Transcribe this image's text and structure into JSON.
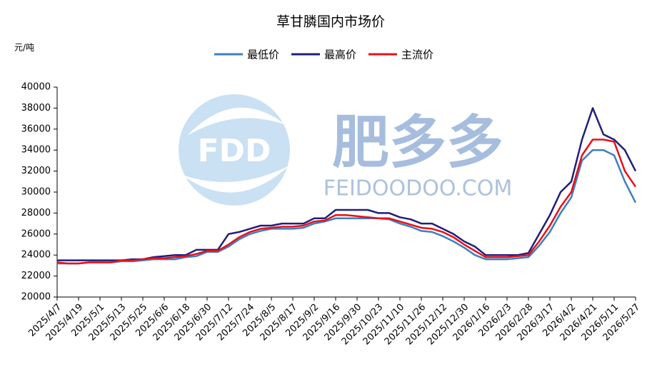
{
  "chart_data": {
    "type": "line",
    "title": "草甘膦国内市场价",
    "y_label": "元/吨",
    "watermark": {
      "logo": "FDD",
      "brand": "肥多多",
      "url": "FEIDOODOO.COM"
    },
    "categories": [
      "2025/4/7",
      null,
      "2025/4/19",
      null,
      "2025/5/1",
      null,
      "2025/5/13",
      null,
      "2025/5/25",
      null,
      "2025/6/6",
      null,
      "2025/6/18",
      null,
      "2025/6/30",
      null,
      "2025/7/12",
      null,
      "2025/7/24",
      null,
      "2025/8/5",
      null,
      "2025/8/17",
      null,
      "2025/9/2",
      null,
      "2025/9/16",
      null,
      "2025/9/30",
      null,
      "2025/10/23",
      null,
      "2025/11/10",
      null,
      "2025/11/26",
      null,
      "2025/12/12",
      null,
      "2025/12/30",
      null,
      "2026/1/16",
      null,
      "2026/2/3",
      null,
      "2026/2/28",
      null,
      "2026/3/17",
      null,
      "2026/4/2",
      null,
      "2026/4/21",
      null,
      "2026/5/11",
      null,
      "2026/5/27"
    ],
    "series": [
      {
        "name": "最低价",
        "color": "#3f7fbf",
        "values": [
          23200,
          23200,
          23200,
          23300,
          23300,
          23300,
          23400,
          23400,
          23500,
          23600,
          23600,
          23600,
          23800,
          23900,
          24300,
          24300,
          24800,
          25500,
          26000,
          26300,
          26500,
          26500,
          26500,
          26600,
          27000,
          27200,
          27500,
          27500,
          27500,
          27500,
          27500,
          27400,
          27000,
          26700,
          26300,
          26200,
          25800,
          25300,
          24700,
          24000,
          23600,
          23600,
          23600,
          23700,
          23800,
          24900,
          26200,
          28000,
          29500,
          33000,
          34000,
          34000,
          33500,
          31000,
          29000
        ]
      },
      {
        "name": "最高价",
        "color": "#1f1f7a",
        "values": [
          23500,
          23500,
          23500,
          23500,
          23500,
          23500,
          23500,
          23600,
          23600,
          23800,
          23900,
          24000,
          24000,
          24500,
          24500,
          24500,
          26000,
          26200,
          26500,
          26800,
          26800,
          27000,
          27000,
          27000,
          27500,
          27500,
          28300,
          28300,
          28300,
          28300,
          28000,
          28000,
          27600,
          27400,
          27000,
          27000,
          26500,
          26000,
          25300,
          24800,
          24000,
          24000,
          24000,
          24000,
          24200,
          26000,
          27800,
          30000,
          31000,
          35000,
          38000,
          35500,
          35000,
          34000,
          32000
        ]
      },
      {
        "name": "主流价",
        "color": "#e8101a",
        "values": [
          23300,
          23200,
          23200,
          23300,
          23300,
          23300,
          23500,
          23500,
          23600,
          23700,
          23700,
          23800,
          23900,
          24100,
          24400,
          24400,
          25000,
          25700,
          26200,
          26500,
          26600,
          26700,
          26700,
          26800,
          27200,
          27300,
          27800,
          27800,
          27700,
          27600,
          27500,
          27500,
          27200,
          26900,
          26600,
          26500,
          26200,
          25700,
          25000,
          24400,
          23800,
          23800,
          23800,
          23900,
          24000,
          25300,
          26800,
          28600,
          30000,
          33500,
          35000,
          35000,
          34800,
          32000,
          30500
        ]
      }
    ],
    "ylim": [
      20000,
      40000
    ],
    "yticks": [
      20000,
      22000,
      24000,
      26000,
      28000,
      30000,
      32000,
      34000,
      36000,
      38000,
      40000
    ],
    "legend": "top"
  }
}
